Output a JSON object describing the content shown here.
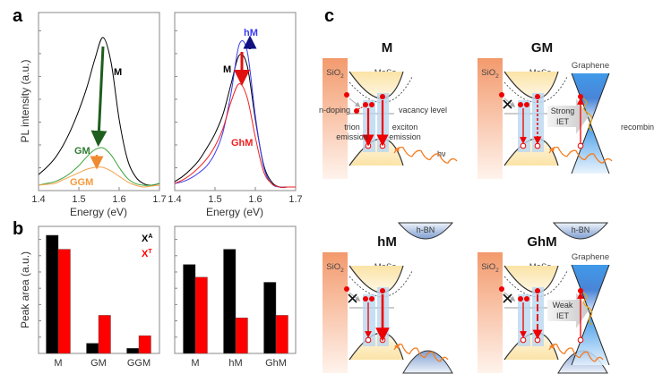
{
  "panel_labels": {
    "a": "a",
    "b": "b",
    "c": "c"
  },
  "colors": {
    "M": "#000000",
    "GM": "#3aa13a",
    "GGM": "#f5a24a",
    "hM": "#3a3af0",
    "GhM": "#f02020",
    "XA": "#000000",
    "XT": "#ff0000"
  },
  "chart_data": [
    {
      "type": "line",
      "panel": "a-left",
      "xlabel": "Energy (eV)",
      "ylabel": "PL intensity (a.u.)",
      "xlim": [
        1.4,
        1.7
      ],
      "ylim": [
        0,
        1
      ],
      "xticks": [
        "1.4",
        "1.5",
        "1.6",
        "1.7"
      ],
      "x": [
        1.4,
        1.42,
        1.44,
        1.46,
        1.48,
        1.5,
        1.52,
        1.54,
        1.56,
        1.58,
        1.6,
        1.62,
        1.64,
        1.66,
        1.68,
        1.7
      ],
      "series": [
        {
          "name": "M",
          "values": [
            0.09,
            0.13,
            0.18,
            0.25,
            0.34,
            0.45,
            0.58,
            0.74,
            0.86,
            0.72,
            0.4,
            0.18,
            0.08,
            0.04,
            0.03,
            0.04
          ]
        },
        {
          "name": "GM",
          "values": [
            0.03,
            0.04,
            0.05,
            0.07,
            0.1,
            0.14,
            0.19,
            0.23,
            0.24,
            0.2,
            0.13,
            0.07,
            0.04,
            0.03,
            0.03,
            0.04
          ]
        },
        {
          "name": "GGM",
          "values": [
            0.03,
            0.035,
            0.04,
            0.06,
            0.08,
            0.1,
            0.12,
            0.13,
            0.13,
            0.11,
            0.08,
            0.05,
            0.03,
            0.02,
            0.025,
            0.03
          ]
        }
      ]
    },
    {
      "type": "line",
      "panel": "a-right",
      "xlabel": "Energy (eV)",
      "xlim": [
        1.4,
        1.7
      ],
      "ylim": [
        0,
        1
      ],
      "xticks": [
        "1.4",
        "1.5",
        "1.6",
        "1.7"
      ],
      "x": [
        1.4,
        1.42,
        1.44,
        1.46,
        1.48,
        1.5,
        1.52,
        1.54,
        1.56,
        1.58,
        1.6,
        1.62,
        1.64,
        1.66,
        1.68,
        1.7
      ],
      "series": [
        {
          "name": "M",
          "values": [
            0.05,
            0.08,
            0.12,
            0.17,
            0.24,
            0.32,
            0.43,
            0.6,
            0.76,
            0.7,
            0.4,
            0.15,
            0.05,
            0.02,
            0.02,
            0.02
          ]
        },
        {
          "name": "hM",
          "values": [
            0.04,
            0.05,
            0.07,
            0.1,
            0.14,
            0.21,
            0.33,
            0.55,
            0.82,
            0.78,
            0.42,
            0.14,
            0.04,
            0.02,
            0.02,
            0.02
          ]
        },
        {
          "name": "GhM",
          "values": [
            0.04,
            0.06,
            0.09,
            0.13,
            0.18,
            0.25,
            0.35,
            0.5,
            0.6,
            0.52,
            0.3,
            0.11,
            0.04,
            0.02,
            0.02,
            0.02
          ]
        }
      ]
    },
    {
      "type": "bar",
      "panel": "b-left",
      "ylabel": "Peak area (a.u.)",
      "ylim": [
        0,
        1
      ],
      "categories": [
        "M",
        "GM",
        "GGM"
      ],
      "series": [
        {
          "name": "X^A",
          "label_base": "X",
          "label_sup": "A",
          "values": [
            0.93,
            0.08,
            0.04
          ]
        },
        {
          "name": "X^T",
          "label_base": "X",
          "label_sup": "T",
          "values": [
            0.82,
            0.3,
            0.14
          ]
        }
      ]
    },
    {
      "type": "bar",
      "panel": "b-right",
      "ylim": [
        0,
        1
      ],
      "categories": [
        "M",
        "hM",
        "GhM"
      ],
      "series": [
        {
          "name": "X^A",
          "values": [
            0.7,
            0.82,
            0.56
          ]
        },
        {
          "name": "X^T",
          "values": [
            0.6,
            0.28,
            0.3
          ]
        }
      ]
    }
  ],
  "diagram": {
    "titles": {
      "M": "M",
      "GM": "GM",
      "hM": "hM",
      "GhM": "GhM"
    },
    "sio2": "SiO",
    "sio2_sub": "2",
    "mose2": "MoSe",
    "mose2_sub": "2",
    "graphene": "Graphene",
    "hbn": "h-BN",
    "n_doping": "n-doping",
    "vacancy_level": "vacancy level",
    "trion": "trion",
    "exciton": "exciton",
    "emission": "emission",
    "hv": "hν",
    "strong": "Strong",
    "weak": "Weak",
    "iet": "IET",
    "recombination": "recombination"
  }
}
